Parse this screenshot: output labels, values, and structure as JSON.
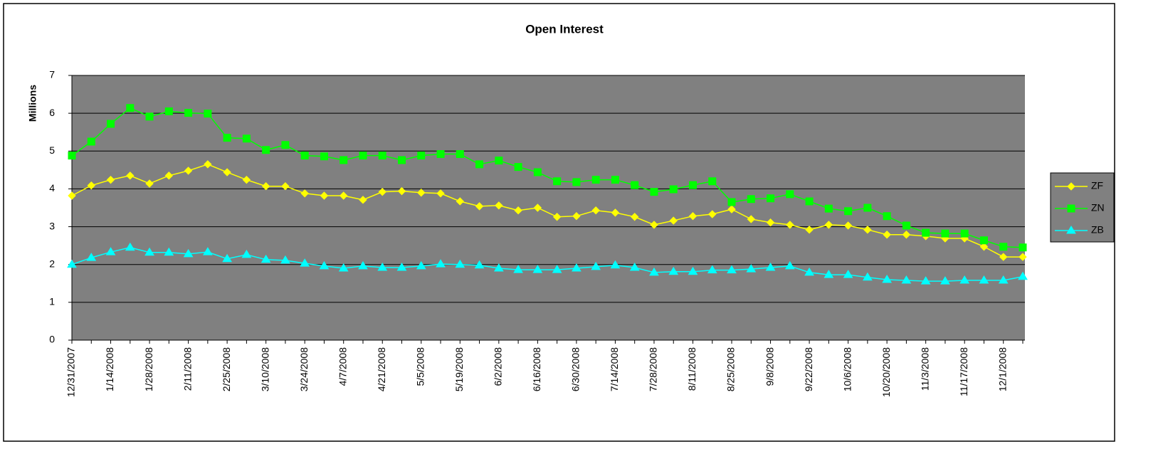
{
  "chart_data": {
    "type": "line",
    "title": "Open Interest",
    "y_label": "Millions",
    "categories": [
      "12/31/2007",
      null,
      "1/14/2008",
      null,
      "1/28/2008",
      null,
      "2/11/2008",
      null,
      "2/25/2008",
      null,
      "3/10/2008",
      null,
      "3/24/2008",
      null,
      "4/7/2008",
      null,
      "4/21/2008",
      null,
      "5/5/2008",
      null,
      "5/19/2008",
      null,
      "6/2/2008",
      null,
      "6/16/2008",
      null,
      "6/30/2008",
      null,
      "7/14/2008",
      null,
      "7/28/2008",
      null,
      "8/11/2008",
      null,
      "8/25/2008",
      null,
      "9/8/2008",
      null,
      "9/22/2008",
      null,
      "10/6/2008",
      null,
      "10/20/2008",
      null,
      "11/3/2008",
      null,
      "11/17/2008",
      null,
      "12/1/2008",
      null
    ],
    "series": [
      {
        "name": "ZF",
        "color": "#ffff00",
        "marker": "diamond",
        "values": [
          3.82,
          4.09,
          4.24,
          4.35,
          4.14,
          4.35,
          4.48,
          4.65,
          4.44,
          4.24,
          4.07,
          4.07,
          3.88,
          3.82,
          3.82,
          3.71,
          3.92,
          3.94,
          3.9,
          3.88,
          3.67,
          3.54,
          3.56,
          3.43,
          3.5,
          3.26,
          3.28,
          3.43,
          3.37,
          3.26,
          3.05,
          3.16,
          3.28,
          3.33,
          3.46,
          3.2,
          3.11,
          3.05,
          2.92,
          3.05,
          3.03,
          2.92,
          2.79,
          2.79,
          2.75,
          2.69,
          2.69,
          2.47,
          2.2,
          2.2
        ]
      },
      {
        "name": "ZN",
        "color": "#00ff00",
        "marker": "square",
        "values": [
          4.88,
          5.25,
          5.72,
          6.14,
          5.91,
          6.05,
          6.01,
          5.99,
          5.35,
          5.33,
          5.03,
          5.16,
          4.88,
          4.86,
          4.76,
          4.88,
          4.88,
          4.76,
          4.88,
          4.92,
          4.92,
          4.65,
          4.75,
          4.58,
          4.44,
          4.2,
          4.18,
          4.24,
          4.24,
          4.1,
          3.92,
          3.99,
          4.1,
          4.2,
          3.65,
          3.73,
          3.75,
          3.86,
          3.67,
          3.48,
          3.41,
          3.5,
          3.28,
          3.03,
          2.84,
          2.82,
          2.82,
          2.64,
          2.47,
          2.45
        ]
      },
      {
        "name": "ZB",
        "color": "#00ffff",
        "marker": "triangle",
        "values": [
          2.0,
          2.18,
          2.33,
          2.45,
          2.32,
          2.32,
          2.28,
          2.33,
          2.15,
          2.26,
          2.13,
          2.11,
          2.03,
          1.96,
          1.9,
          1.96,
          1.92,
          1.92,
          1.96,
          2.01,
          2.0,
          1.98,
          1.9,
          1.86,
          1.86,
          1.86,
          1.9,
          1.94,
          1.98,
          1.92,
          1.79,
          1.81,
          1.81,
          1.85,
          1.85,
          1.88,
          1.92,
          1.96,
          1.79,
          1.73,
          1.73,
          1.66,
          1.6,
          1.58,
          1.56,
          1.56,
          1.58,
          1.58,
          1.58,
          1.68
        ]
      }
    ],
    "ylim": [
      0,
      7
    ],
    "yticks": [
      0,
      1,
      2,
      3,
      4,
      5,
      6,
      7
    ],
    "grid": true,
    "plot_background": "#808080",
    "legend": "right"
  }
}
